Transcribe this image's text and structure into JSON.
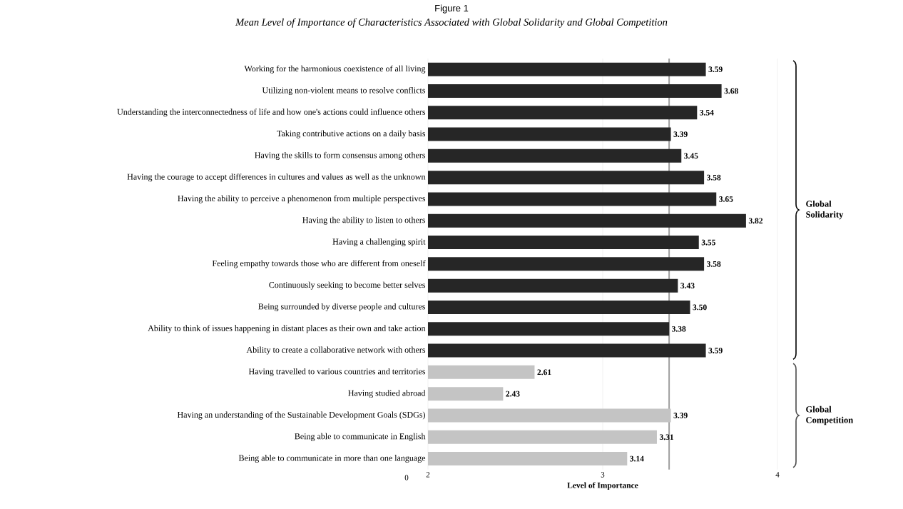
{
  "chart_data": {
    "type": "bar",
    "orientation": "horizontal",
    "title": "Figure 1",
    "subtitle": "Mean Level of Importance of Characteristics Associated with Global Solidarity and Global Competition",
    "categories": [
      "Working for the harmonious coexistence of all living",
      "Utilizing non-violent means to resolve conflicts",
      "Understanding the interconnectedness of life and how one's actions could influence others",
      "Taking contributive actions on a daily basis",
      "Having the skills to form consensus among others",
      "Having the courage to accept differences in cultures and values as well as the unknown",
      "Having the ability to perceive a phenomenon from multiple perspectives",
      "Having the ability to listen to others",
      "Having a challenging spirit",
      "Feeling empathy towards those who are different from oneself",
      "Continuously seeking to become better selves",
      "Being surrounded by diverse people and cultures",
      "Ability to think of issues happening in distant places as their own and take action",
      "Ability to create a collaborative network with others",
      "Having travelled to various countries and territories",
      "Having studied abroad",
      "Having an understanding of the Sustainable Development Goals (SDGs)",
      "Being able to communicate in English",
      "Being able to communicate in more than one language"
    ],
    "values": [
      3.59,
      3.68,
      3.54,
      3.39,
      3.45,
      3.58,
      3.65,
      3.82,
      3.55,
      3.58,
      3.43,
      3.5,
      3.38,
      3.59,
      2.61,
      2.43,
      3.39,
      3.31,
      3.14
    ],
    "value_labels": [
      "3.59",
      "3.68",
      "3.54",
      "3.39",
      "3.45",
      "3.58",
      "3.65",
      "3.82",
      "3.55",
      "3.58",
      "3.43",
      "3.50",
      "3.38",
      "3.59",
      "2.61",
      "2.43",
      "3.39",
      "3.31",
      "3.14"
    ],
    "colors": [
      "#262626",
      "#262626",
      "#262626",
      "#262626",
      "#262626",
      "#262626",
      "#262626",
      "#262626",
      "#262626",
      "#262626",
      "#262626",
      "#262626",
      "#262626",
      "#262626",
      "#c4c4c4",
      "#c4c4c4",
      "#c4c4c4",
      "#c4c4c4",
      "#c4c4c4"
    ],
    "xlabel": "Level of Importance",
    "xlim": [
      2,
      4
    ],
    "xticks": [
      2,
      3,
      4
    ],
    "ref_lines": [
      {
        "axis": "x",
        "value": 3.38,
        "color": "#a0a0a0"
      }
    ],
    "grid": "x",
    "annotations": [
      "0",
      "Global Solidarity",
      "Global Competition"
    ]
  }
}
